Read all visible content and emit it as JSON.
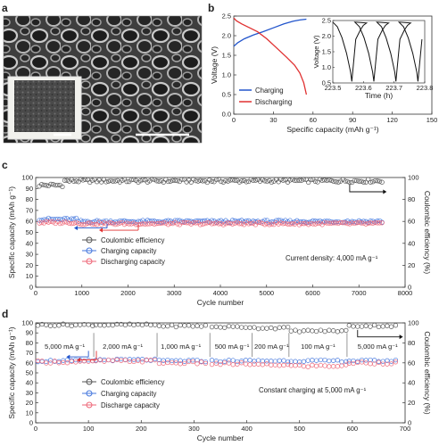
{
  "panels": {
    "a": {
      "letter": "a"
    },
    "b": {
      "letter": "b"
    },
    "c": {
      "letter": "c"
    },
    "d": {
      "letter": "d"
    }
  },
  "colors": {
    "charging": "#2255cc",
    "discharging": "#e03030",
    "ce": "#555555",
    "charging_marker": "#4477dd",
    "discharging_marker": "#ee6677"
  },
  "chart_data": [
    {
      "id": "b_main",
      "type": "line",
      "xlabel": "Specific capacity (mAh g⁻¹)",
      "ylabel": "Voltage (V)",
      "xlim": [
        0,
        150
      ],
      "ylim": [
        0,
        2.5
      ],
      "xticks": [
        "0",
        "30",
        "60",
        "90",
        "120",
        "150"
      ],
      "yticks": [
        "0.0",
        "0.5",
        "1.0",
        "1.5",
        "2.0",
        "2.5"
      ],
      "legend": [
        "Charging",
        "Discharging"
      ],
      "series": [
        {
          "name": "Charging",
          "x": [
            0,
            3,
            8,
            15,
            22,
            30,
            38,
            45,
            50,
            55
          ],
          "y": [
            1.73,
            1.82,
            1.92,
            2.02,
            2.1,
            2.2,
            2.3,
            2.37,
            2.4,
            2.42
          ]
        },
        {
          "name": "Discharging",
          "x": [
            0,
            2,
            6,
            12,
            18,
            25,
            32,
            40,
            46,
            50,
            53,
            55
          ],
          "y": [
            2.45,
            2.38,
            2.3,
            2.2,
            2.1,
            1.92,
            1.7,
            1.45,
            1.25,
            1.05,
            0.8,
            0.5
          ]
        }
      ]
    },
    {
      "id": "b_inset",
      "type": "line",
      "xlabel": "Time (h)",
      "ylabel": "Voltage (V)",
      "xlim": [
        223.5,
        223.8
      ],
      "ylim": [
        0.5,
        2.5
      ],
      "xticks": [
        "223.5",
        "223.6",
        "223.7",
        "223.8"
      ],
      "yticks": [
        "0.5",
        "1.0",
        "1.5",
        "2.0",
        "2.5"
      ]
    },
    {
      "id": "c",
      "type": "scatter",
      "xlabel": "Cycle number",
      "ylabel": "Specific capacity (mAh g⁻¹)",
      "y2label": "Coulombic efficiency (%)",
      "xlim": [
        0,
        8000
      ],
      "ylim": [
        0,
        100
      ],
      "y2lim": [
        0,
        100
      ],
      "xticks": [
        "0",
        "1000",
        "2000",
        "3000",
        "4000",
        "5000",
        "6000",
        "7000",
        "8000"
      ],
      "yticks": [
        "0",
        "10",
        "20",
        "30",
        "40",
        "50",
        "60",
        "70",
        "80",
        "90",
        "100"
      ],
      "y2ticks": [
        "0",
        "20",
        "40",
        "60",
        "80",
        "100"
      ],
      "legend": [
        "Coulombic efficiency",
        "Charging capacity",
        "Discharging capacity"
      ],
      "annotation": "Current density: 4,000 mA g⁻¹",
      "series": [
        {
          "name": "Coulombic efficiency",
          "x_end": 7500,
          "value": 97
        },
        {
          "name": "Charging capacity",
          "x_end": 7500,
          "value": 60
        },
        {
          "name": "Discharging capacity",
          "x_end": 7500,
          "value": 58
        }
      ]
    },
    {
      "id": "d",
      "type": "scatter",
      "xlabel": "Cycle number",
      "ylabel": "Specific capacity (mAh g⁻¹)",
      "y2label": "Coulombic efficiency (%)",
      "xlim": [
        0,
        700
      ],
      "ylim": [
        0,
        100
      ],
      "y2lim": [
        0,
        100
      ],
      "xticks": [
        "0",
        "100",
        "200",
        "300",
        "400",
        "500",
        "600",
        "700"
      ],
      "yticks": [
        "0",
        "10",
        "20",
        "30",
        "40",
        "50",
        "60",
        "70",
        "80",
        "90",
        "100"
      ],
      "y2ticks": [
        "0",
        "20",
        "40",
        "60",
        "80",
        "100"
      ],
      "legend": [
        "Coulombic efficiency",
        "Charging capacity",
        "Discharge capacity"
      ],
      "annotation": "Constant charging at 5,000 mA g⁻¹",
      "rate_labels": [
        {
          "text": "5,000 mA g⁻¹",
          "x": 55
        },
        {
          "text": "2,000 mA g⁻¹",
          "x": 165
        },
        {
          "text": "1,000 mA g⁻¹",
          "x": 275
        },
        {
          "text": "500 mA g⁻¹",
          "x": 372
        },
        {
          "text": "200 mA g⁻¹",
          "x": 447
        },
        {
          "text": "100 mA g⁻¹",
          "x": 535
        },
        {
          "text": "5,000 mA g⁻¹",
          "x": 648
        }
      ],
      "segments": [
        {
          "x0": 0,
          "x1": 110,
          "ce": 98,
          "charge": 62,
          "discharge": 61
        },
        {
          "x0": 110,
          "x1": 230,
          "ce": 98,
          "charge": 63,
          "discharge": 62
        },
        {
          "x0": 230,
          "x1": 330,
          "ce": 97,
          "charge": 62,
          "discharge": 60
        },
        {
          "x0": 330,
          "x1": 410,
          "ce": 96,
          "charge": 62,
          "discharge": 59
        },
        {
          "x0": 410,
          "x1": 480,
          "ce": 95,
          "charge": 62,
          "discharge": 58
        },
        {
          "x0": 480,
          "x1": 590,
          "ce": 92,
          "charge": 62,
          "discharge": 57
        },
        {
          "x0": 590,
          "x1": 690,
          "ce": 97,
          "charge": 62,
          "discharge": 60
        }
      ]
    }
  ]
}
